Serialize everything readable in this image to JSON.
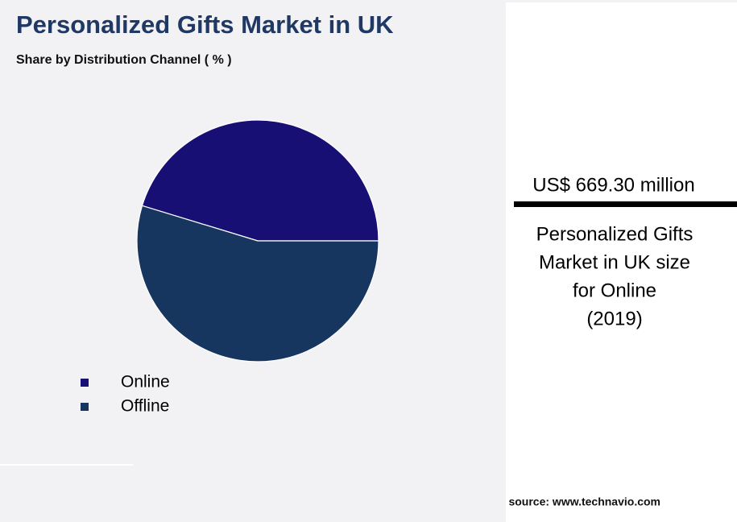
{
  "chart_data": {
    "type": "pie",
    "title": "Personalized Gifts Market in UK",
    "subtitle": "Share by Distribution Channel ( % )",
    "categories": [
      "Online",
      "Offline"
    ],
    "values": [
      45.3,
      54.7
    ],
    "colors": [
      "#170f74",
      "#17365f"
    ],
    "callout": {
      "value": "US$ 669.30 million",
      "lines": [
        "Personalized Gifts",
        "Market in UK size",
        "for Online",
        "(2019)"
      ]
    },
    "source": "source: www.technavio.com"
  }
}
